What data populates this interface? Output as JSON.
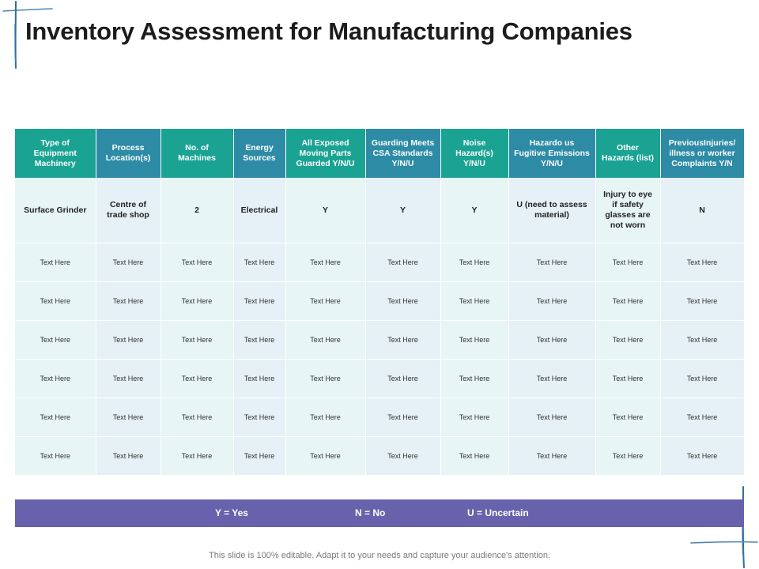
{
  "title": "Inventory Assessment for Manufacturing Companies",
  "table": {
    "headers": [
      "Type of Equipment Machinery",
      "Process Location(s)",
      "No. of Machines",
      "Energy Sources",
      "All Exposed Moving Parts Guarded Y/N/U",
      "Guarding Meets CSA Standards Y/N/U",
      "Noise Hazard(s) Y/N/U",
      "Hazardo us Fugitive Emissions Y/N/U",
      "Other Hazards (list)",
      "PreviousInjuries/ illness or worker Complaints Y/N"
    ],
    "first_row": [
      "Surface Grinder",
      "Centre of trade shop",
      "2",
      "Electrical",
      "Y",
      "Y",
      "Y",
      "U (need to assess material)",
      "Injury to eye if safety glasses are not worn",
      "N"
    ],
    "rows": [
      [
        "Text Here",
        "Text Here",
        "Text Here",
        "Text Here",
        "Text Here",
        "Text Here",
        "Text Here",
        "Text Here",
        "Text Here",
        "Text Here"
      ],
      [
        "Text Here",
        "Text Here",
        "Text Here",
        "Text Here",
        "Text Here",
        "Text Here",
        "Text Here",
        "Text Here",
        "Text Here",
        "Text Here"
      ],
      [
        "Text Here",
        "Text Here",
        "Text Here",
        "Text Here",
        "Text Here",
        "Text Here",
        "Text Here",
        "Text Here",
        "Text Here",
        "Text Here"
      ],
      [
        "Text Here",
        "Text Here",
        "Text Here",
        "Text Here",
        "Text Here",
        "Text Here",
        "Text Here",
        "Text Here",
        "Text Here",
        "Text Here"
      ],
      [
        "Text Here",
        "Text Here",
        "Text Here",
        "Text Here",
        "Text Here",
        "Text Here",
        "Text Here",
        "Text Here",
        "Text Here",
        "Text Here"
      ],
      [
        "Text Here",
        "Text Here",
        "Text Here",
        "Text Here",
        "Text Here",
        "Text Here",
        "Text Here",
        "Text Here",
        "Text Here",
        "Text Here"
      ]
    ]
  },
  "legend": {
    "yes": "Y = Yes",
    "no": "N = No",
    "uncertain": "U = Uncertain"
  },
  "footer": "This slide is 100% editable. Adapt it to your needs and capture your audience's attention.",
  "colors": {
    "header_teal": "#1aa393",
    "header_blue": "#2d8ba6",
    "legend_bar": "#6762ab",
    "brush_stroke": "#2f6f9a"
  }
}
